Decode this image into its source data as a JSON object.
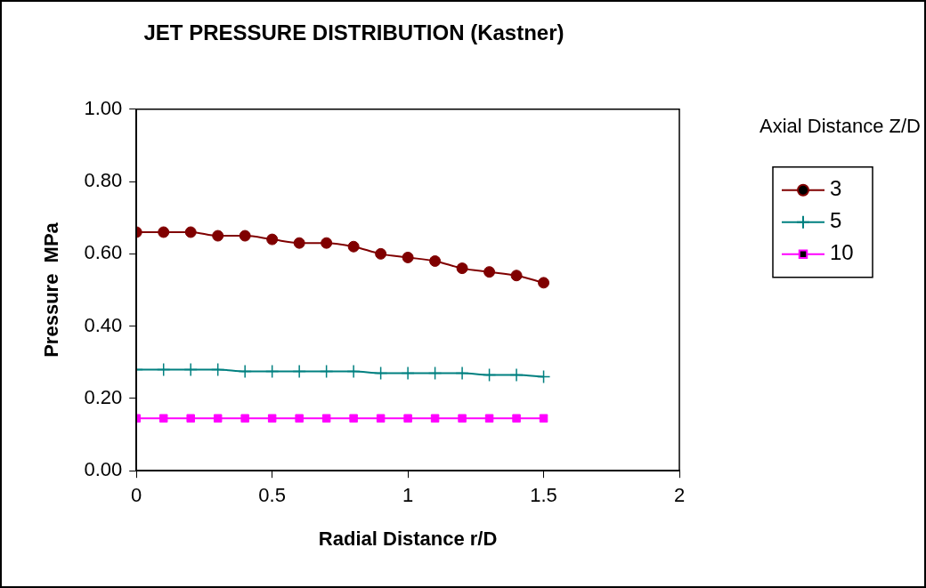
{
  "chart_data": {
    "type": "line",
    "title": "JET PRESSURE DISTRIBUTION (Kastner)",
    "xlabel": "Radial Distance r/D",
    "ylabel": "Pressure  MPa",
    "legend_title": "Axial Distance Z/D",
    "x": [
      0,
      0.1,
      0.2,
      0.3,
      0.4,
      0.5,
      0.6,
      0.7,
      0.8,
      0.9,
      1,
      1.1,
      1.2,
      1.3,
      1.4,
      1.5
    ],
    "series": [
      {
        "name": "3",
        "color": "#800000",
        "marker": "circle",
        "values": [
          0.66,
          0.66,
          0.66,
          0.65,
          0.65,
          0.64,
          0.63,
          0.63,
          0.62,
          0.6,
          0.59,
          0.58,
          0.56,
          0.55,
          0.54,
          0.52
        ]
      },
      {
        "name": "5",
        "color": "#008080",
        "marker": "cross",
        "values": [
          0.28,
          0.28,
          0.28,
          0.28,
          0.275,
          0.275,
          0.275,
          0.275,
          0.275,
          0.27,
          0.27,
          0.27,
          0.27,
          0.265,
          0.265,
          0.26
        ]
      },
      {
        "name": "10",
        "color": "#ff00ff",
        "marker": "square",
        "values": [
          0.145,
          0.145,
          0.145,
          0.145,
          0.145,
          0.145,
          0.145,
          0.145,
          0.145,
          0.145,
          0.145,
          0.145,
          0.145,
          0.145,
          0.145,
          0.145
        ]
      }
    ],
    "xlim": [
      0,
      2
    ],
    "xticks": [
      0,
      0.5,
      1,
      1.5,
      2
    ],
    "ylim": [
      0,
      1
    ],
    "yticks": [
      {
        "value": 0,
        "label": "0.00"
      },
      {
        "value": 0.2,
        "label": "0.20"
      },
      {
        "value": 0.4,
        "label": "0.40"
      },
      {
        "value": 0.6,
        "label": "0.60"
      },
      {
        "value": 0.8,
        "label": "0.80"
      },
      {
        "value": 1,
        "label": "1.00"
      }
    ],
    "grid": false,
    "legend": "right",
    "line_style": "solid"
  }
}
